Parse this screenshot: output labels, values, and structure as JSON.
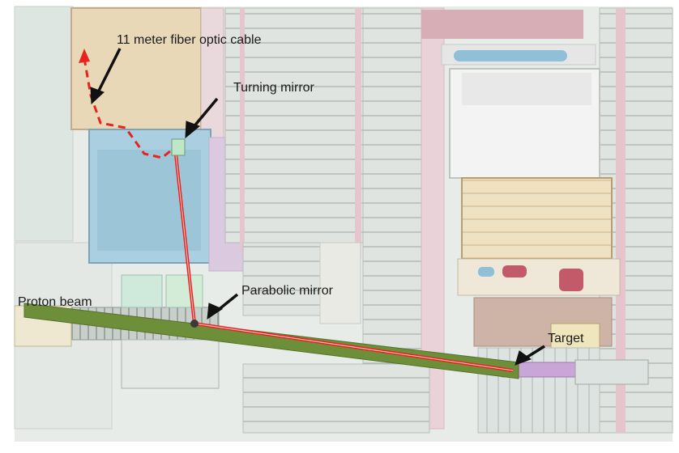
{
  "labels": {
    "fiber_cable": "11 meter fiber optic cable",
    "turning_mirror": "Turning mirror",
    "parabolic_mirror": "Parabolic mirror",
    "proton_beam": "Proton beam",
    "target": "Target"
  },
  "colors": {
    "laser_path": "#e8231f",
    "proton_beam": "#6e8f3a",
    "chamber_tan": "#e6d6b8",
    "chamber_blue": "#9fc7d9",
    "background_cad": "#e8ece8",
    "pink_lines": "#e5c7cf",
    "dark_red_parts": "#c35a6a"
  }
}
